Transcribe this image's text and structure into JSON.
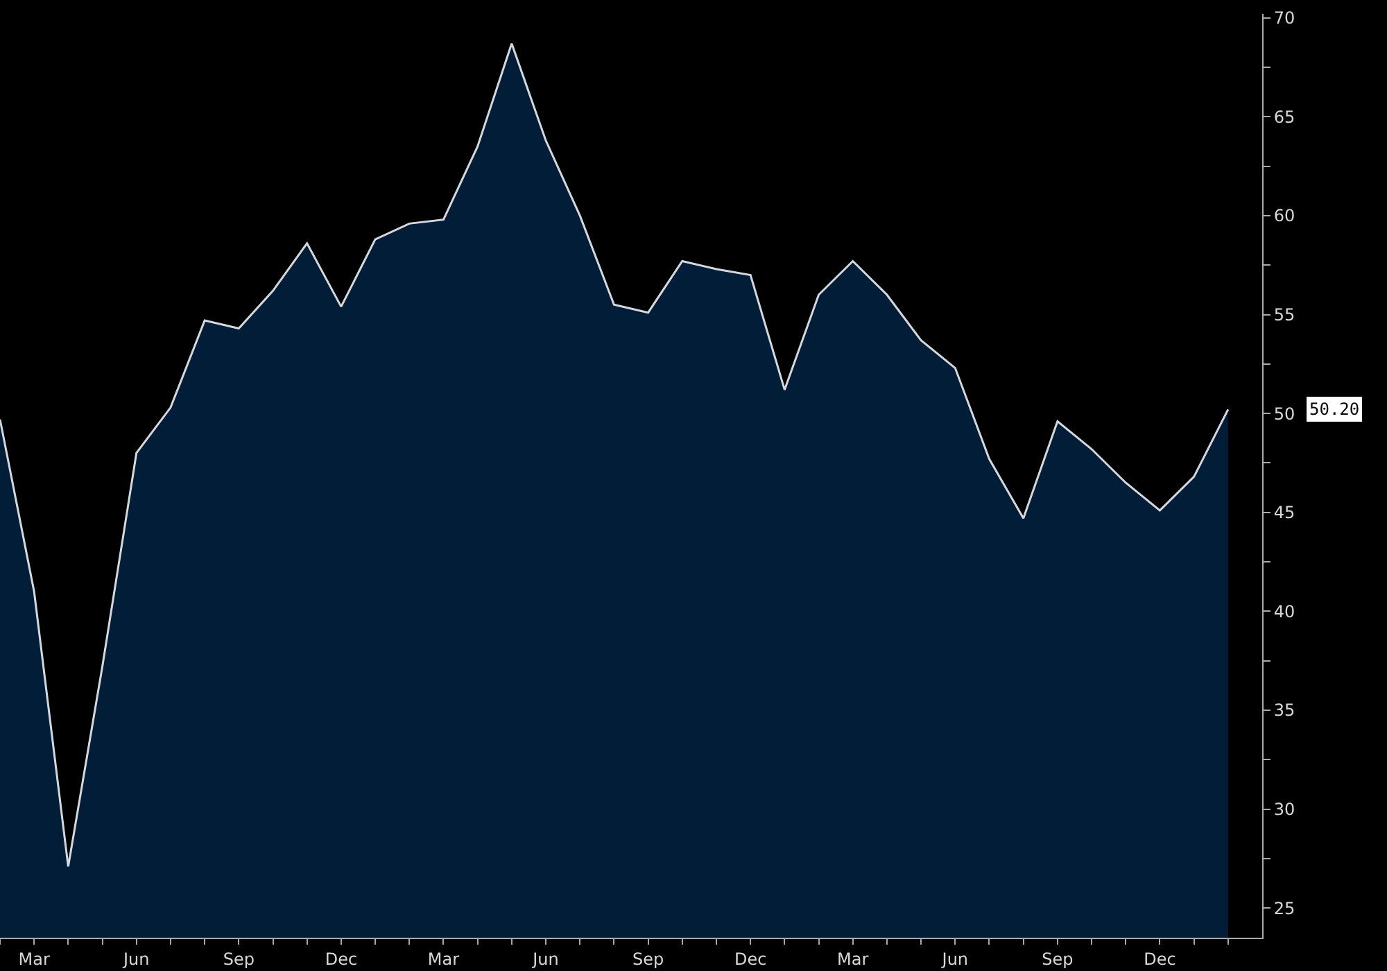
{
  "chart_data": {
    "type": "area",
    "categories": [
      null,
      "Mar",
      null,
      null,
      "Jun",
      null,
      null,
      "Sep",
      null,
      null,
      "Dec",
      null,
      null,
      "Mar",
      null,
      null,
      "Jun",
      null,
      null,
      "Sep",
      null,
      null,
      "Dec",
      null,
      null,
      "Mar",
      null,
      null,
      "Jun",
      null,
      null,
      "Sep",
      null,
      null,
      "Dec",
      null,
      null
    ],
    "series": [
      {
        "color": "#021d38",
        "values": [
          49.7,
          41.0,
          27.1,
          37.2,
          48.0,
          50.3,
          54.7,
          54.3,
          56.2,
          58.6,
          55.4,
          58.8,
          59.6,
          59.8,
          63.5,
          68.7,
          63.8,
          60.0,
          55.5,
          55.1,
          57.7,
          57.3,
          57.0,
          51.2,
          56.0,
          57.7,
          56.0,
          53.7,
          52.3,
          47.7,
          44.7,
          49.6,
          48.2,
          46.5,
          45.1,
          46.8,
          50.2
        ]
      }
    ],
    "ylim": [
      23.5,
      70.2
    ],
    "yticks": [
      25,
      {
        "value": 27.5,
        "label": null
      },
      30,
      {
        "value": 32.5,
        "label": null
      },
      35,
      {
        "value": 37.5,
        "label": null
      },
      40,
      {
        "value": 42.5,
        "label": null
      },
      45,
      {
        "value": 47.5,
        "label": null
      },
      50,
      {
        "value": 52.5,
        "label": null
      },
      55,
      {
        "value": 57.5,
        "label": null
      },
      60,
      {
        "value": 62.5,
        "label": null
      },
      65,
      {
        "value": 67.5,
        "label": null
      },
      70
    ],
    "annotations": [
      "50.20"
    ],
    "grid": false
  }
}
